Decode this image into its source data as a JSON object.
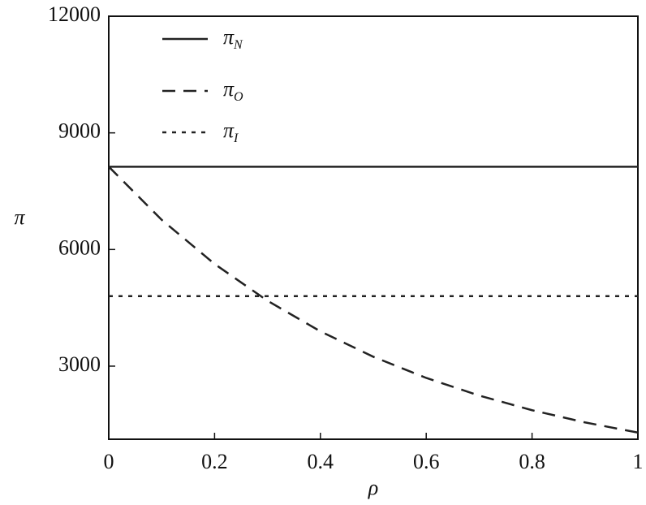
{
  "chart_data": {
    "type": "line",
    "xlabel": "ρ",
    "ylabel": "π",
    "x": [
      0,
      0.1,
      0.2,
      0.3,
      0.4,
      0.5,
      0.6,
      0.7,
      0.8,
      0.9,
      1
    ],
    "series": [
      {
        "name": "π",
        "sub": "N",
        "color": "#222",
        "dash": "solid",
        "values": [
          8130,
          8130,
          8130,
          8130,
          8130,
          8130,
          8130,
          8130,
          8130,
          8130,
          8130
        ]
      },
      {
        "name": "π",
        "sub": "O",
        "color": "#222",
        "dash": "dashed",
        "values": [
          8130,
          6764,
          5628,
          4682,
          3895,
          3241,
          2697,
          2244,
          1867,
          1553,
          1292
        ]
      },
      {
        "name": "π",
        "sub": "I",
        "color": "#222",
        "dash": "dotted",
        "values": [
          4800,
          4800,
          4800,
          4800,
          4800,
          4800,
          4800,
          4800,
          4800,
          4800,
          4800
        ]
      }
    ],
    "xlim": [
      0,
      1
    ],
    "xticks": [
      0,
      0.2,
      0.4,
      0.6,
      0.8,
      1
    ],
    "ylim": [
      1120,
      12000
    ],
    "yticks": [
      3000,
      6000,
      9000,
      12000
    ],
    "legend": "upper-left",
    "grid": false
  }
}
